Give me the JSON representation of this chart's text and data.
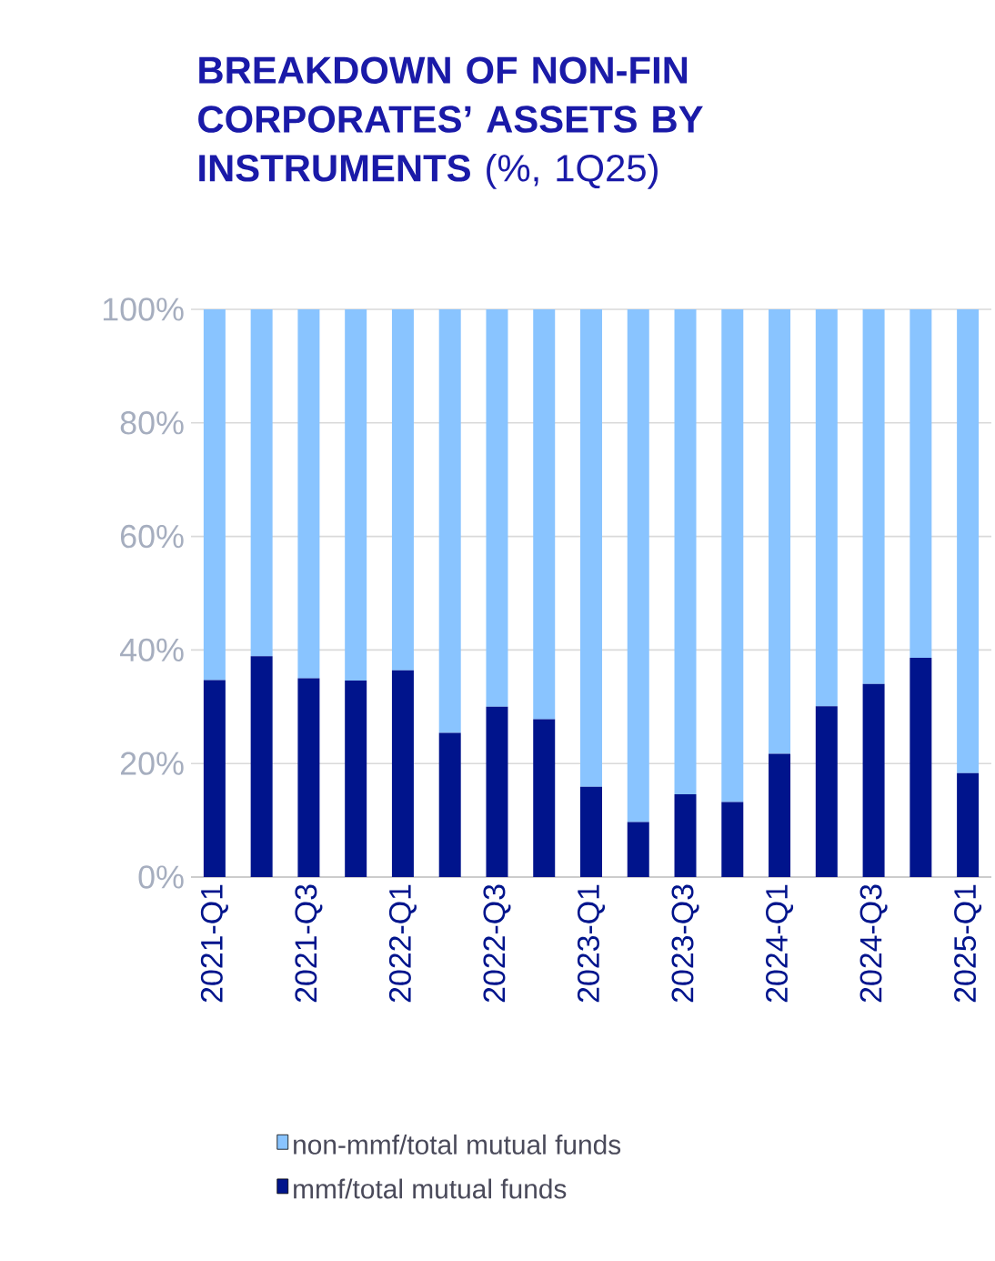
{
  "chart_data": {
    "type": "bar",
    "stacked": true,
    "title": "**BREAKDOWN OF NON-FIN CORPORATES’ ASSETS BY INSTRUMENTS** (%, 1Q25)",
    "categories": [
      "2021-Q1",
      null,
      "2021-Q3",
      null,
      "2022-Q1",
      null,
      "2022-Q3",
      null,
      "2023-Q1",
      null,
      "2023-Q3",
      null,
      "2024-Q1",
      null,
      "2024-Q3",
      null,
      "2025-Q1"
    ],
    "series": [
      {
        "name": "mmf/total mutual funds",
        "color": "#00148c",
        "values": [
          34.7,
          38.9,
          35.0,
          34.6,
          36.4,
          25.4,
          30.0,
          27.8,
          15.9,
          9.7,
          14.6,
          13.2,
          21.7,
          30.1,
          34.0,
          38.6,
          18.3
        ]
      },
      {
        "name": "non-mmf/total mutual funds",
        "color": "#89c4ff",
        "values": [
          65.3,
          61.1,
          65.0,
          65.4,
          63.6,
          74.6,
          70.0,
          72.2,
          84.1,
          90.3,
          85.4,
          86.8,
          78.3,
          69.9,
          66.0,
          61.4,
          81.7
        ]
      }
    ],
    "ylim": [
      0,
      100
    ],
    "yticks": [
      {
        "value": 0,
        "label": "0%"
      },
      {
        "value": 20,
        "label": "20%"
      },
      {
        "value": 40,
        "label": "40%"
      },
      {
        "value": 60,
        "label": "60%"
      },
      {
        "value": 80,
        "label": "80%"
      },
      {
        "value": 100,
        "label": "100%"
      }
    ],
    "grid": "y",
    "legend": "bottom"
  }
}
